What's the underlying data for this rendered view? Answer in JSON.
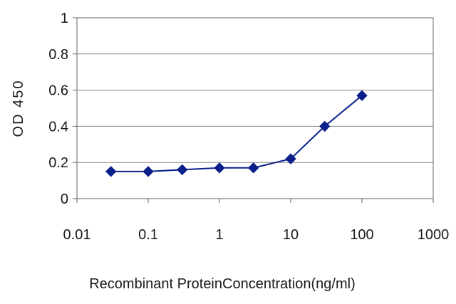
{
  "chart_data": {
    "type": "line",
    "xscale": "log",
    "xlabel": "Recombinant ProteinConcentration(ng/ml)",
    "ylabel": "OD 450",
    "xlim": [
      0.01,
      1000
    ],
    "ylim": [
      0,
      1
    ],
    "x_ticks": [
      "0.01",
      "0.1",
      "1",
      "10",
      "100",
      "1000"
    ],
    "y_ticks": [
      "0",
      "0.2",
      "0.4",
      "0.6",
      "0.8",
      "1"
    ],
    "grid": "horizontal",
    "series": [
      {
        "color": "#0b1f8c",
        "marker": "diamond",
        "x": [
          0.03,
          0.1,
          0.3,
          1,
          3,
          10,
          30,
          100
        ],
        "y": [
          0.15,
          0.15,
          0.16,
          0.17,
          0.17,
          0.22,
          0.4,
          0.57
        ]
      }
    ]
  }
}
